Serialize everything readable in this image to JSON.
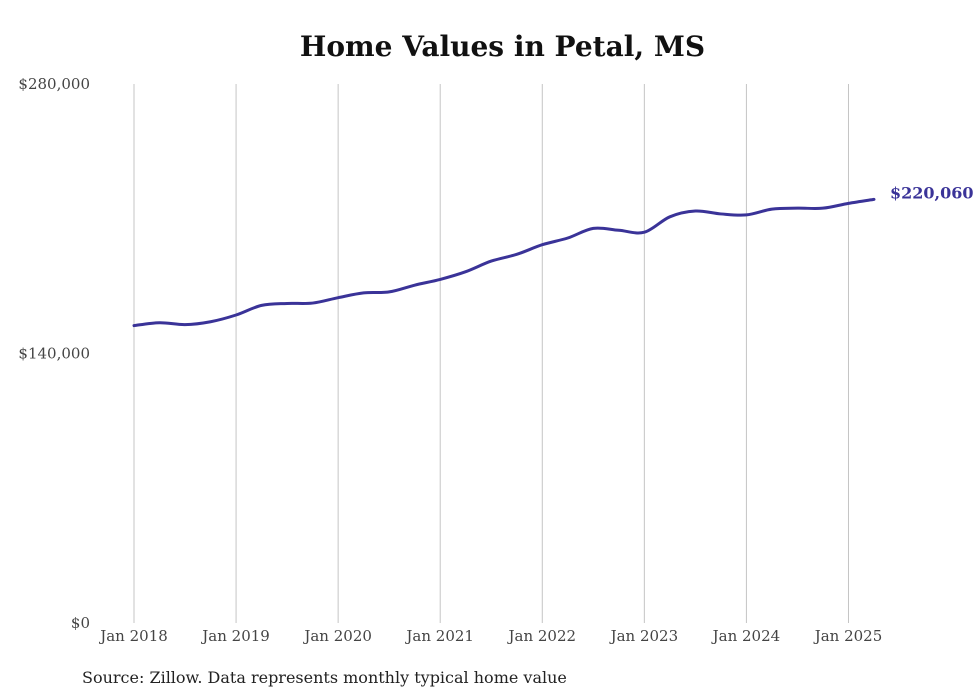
{
  "chart_data": {
    "type": "line",
    "title": "Home Values in Petal, MS",
    "ylim": [
      0,
      280000
    ],
    "y_ticks": [
      {
        "value": 0,
        "label": "$0"
      },
      {
        "value": 140000,
        "label": "$140,000"
      },
      {
        "value": 280000,
        "label": "$280,000"
      }
    ],
    "x_ticks": [
      {
        "date": "2018-01",
        "label": "Jan 2018"
      },
      {
        "date": "2019-01",
        "label": "Jan 2019"
      },
      {
        "date": "2020-01",
        "label": "Jan 2020"
      },
      {
        "date": "2021-01",
        "label": "Jan 2021"
      },
      {
        "date": "2022-01",
        "label": "Jan 2022"
      },
      {
        "date": "2023-01",
        "label": "Jan 2023"
      },
      {
        "date": "2024-01",
        "label": "Jan 2024"
      },
      {
        "date": "2025-01",
        "label": "Jan 2025"
      }
    ],
    "x_range": [
      "2018-01",
      "2025-04"
    ],
    "grid": {
      "vertical": true,
      "horizontal": false
    },
    "line_color": "#3a3398",
    "end_label": "$220,060",
    "series": [
      {
        "points": [
          {
            "x": "2018-01",
            "y": 154500
          },
          {
            "x": "2018-04",
            "y": 156000
          },
          {
            "x": "2018-07",
            "y": 155000
          },
          {
            "x": "2018-10",
            "y": 156500
          },
          {
            "x": "2019-01",
            "y": 160000
          },
          {
            "x": "2019-04",
            "y": 165000
          },
          {
            "x": "2019-07",
            "y": 166000
          },
          {
            "x": "2019-10",
            "y": 166200
          },
          {
            "x": "2020-01",
            "y": 169000
          },
          {
            "x": "2020-04",
            "y": 171500
          },
          {
            "x": "2020-07",
            "y": 172000
          },
          {
            "x": "2020-10",
            "y": 175500
          },
          {
            "x": "2021-01",
            "y": 178500
          },
          {
            "x": "2021-04",
            "y": 182500
          },
          {
            "x": "2021-07",
            "y": 188000
          },
          {
            "x": "2021-10",
            "y": 191500
          },
          {
            "x": "2022-01",
            "y": 196500
          },
          {
            "x": "2022-04",
            "y": 200000
          },
          {
            "x": "2022-07",
            "y": 205000
          },
          {
            "x": "2022-10",
            "y": 204000
          },
          {
            "x": "2023-01",
            "y": 203000
          },
          {
            "x": "2023-04",
            "y": 211000
          },
          {
            "x": "2023-07",
            "y": 214000
          },
          {
            "x": "2023-10",
            "y": 212500
          },
          {
            "x": "2024-01",
            "y": 212000
          },
          {
            "x": "2024-04",
            "y": 215000
          },
          {
            "x": "2024-07",
            "y": 215500
          },
          {
            "x": "2024-10",
            "y": 215500
          },
          {
            "x": "2025-01",
            "y": 218000
          },
          {
            "x": "2025-04",
            "y": 220060
          }
        ]
      }
    ]
  },
  "footer": {
    "source": "Source: Zillow. Data represents monthly typical home value"
  }
}
